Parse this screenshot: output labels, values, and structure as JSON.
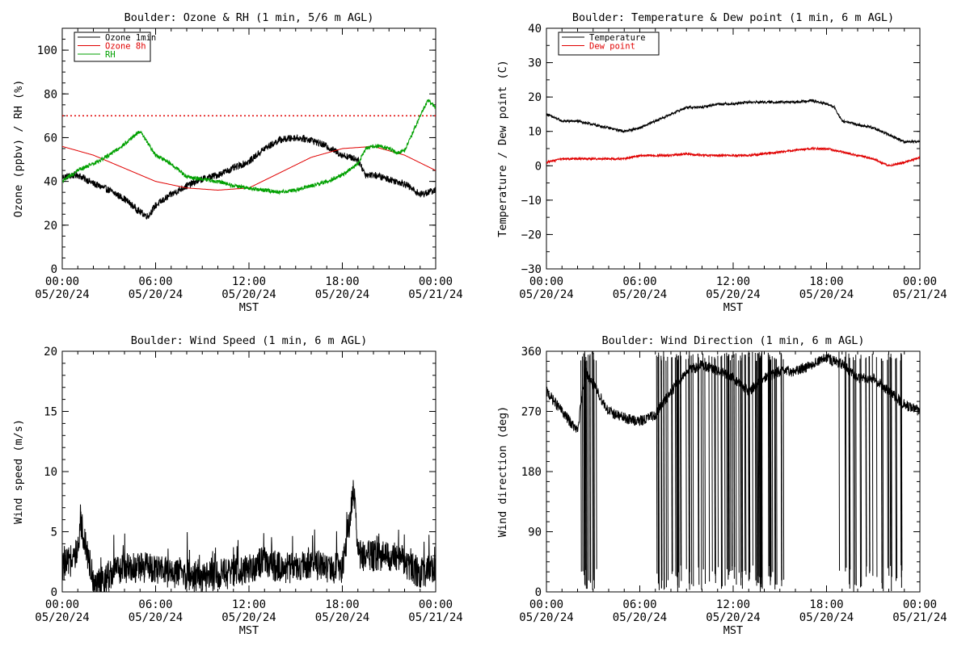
{
  "colors": {
    "background": "#ffffff",
    "axis": "#000000",
    "ozone_1min": "#000000",
    "ozone_8h": "#e00000",
    "rh": "#00a000",
    "temperature": "#000000",
    "dew_point": "#e00000",
    "reference_line": "#e00000"
  },
  "chart_data": [
    {
      "type": "line",
      "title": "Boulder: Ozone & RH (1 min, 5/6 m AGL)",
      "xlabel": "MST",
      "ylabel": "Ozone (ppbv) / RH (%)",
      "xlim": [
        "05/20/24 00:00",
        "05/21/24 00:00"
      ],
      "ylim": [
        0,
        110
      ],
      "xticks": [
        {
          "time": "00:00",
          "date": "05/20/24"
        },
        {
          "time": "06:00",
          "date": "05/20/24"
        },
        {
          "time": "12:00",
          "date": "05/20/24"
        },
        {
          "time": "18:00",
          "date": "05/20/24"
        },
        {
          "time": "00:00",
          "date": "05/21/24"
        }
      ],
      "yticks": [
        "0",
        "20",
        "40",
        "60",
        "80",
        "100"
      ],
      "legend": "top-left",
      "reference_line": {
        "y": 70,
        "style": "dotted",
        "color": "#e00000"
      },
      "series": [
        {
          "name": "Ozone 1min",
          "color": "#000000",
          "x": [
            "00:00",
            "01:00",
            "02:00",
            "03:00",
            "04:00",
            "05:00",
            "05:30",
            "06:00",
            "07:00",
            "08:00",
            "09:00",
            "10:00",
            "11:00",
            "12:00",
            "13:00",
            "14:00",
            "15:00",
            "16:00",
            "17:00",
            "18:00",
            "19:00",
            "19:30",
            "20:00",
            "21:00",
            "22:00",
            "23:00",
            "24:00"
          ],
          "y": [
            42,
            43,
            39,
            36,
            32,
            26,
            24,
            29,
            34,
            38,
            41,
            43,
            46,
            49,
            55,
            59,
            60,
            59,
            56,
            52,
            50,
            43,
            43,
            41,
            39,
            34,
            36
          ]
        },
        {
          "name": "Ozone 8h",
          "color": "#e00000",
          "x": [
            "00:00",
            "02:00",
            "04:00",
            "06:00",
            "08:00",
            "10:00",
            "12:00",
            "14:00",
            "16:00",
            "18:00",
            "20:00",
            "22:00",
            "24:00"
          ],
          "y": [
            56,
            52,
            46,
            40,
            37,
            36,
            37,
            44,
            51,
            55,
            56,
            52,
            45
          ]
        },
        {
          "name": "RH",
          "color": "#00a000",
          "x": [
            "00:00",
            "01:00",
            "02:00",
            "03:00",
            "04:00",
            "05:00",
            "06:00",
            "07:00",
            "08:00",
            "09:00",
            "10:00",
            "11:00",
            "12:00",
            "13:00",
            "14:00",
            "15:00",
            "16:00",
            "17:00",
            "18:00",
            "19:00",
            "19:30",
            "20:00",
            "20:30",
            "21:00",
            "21:30",
            "22:00",
            "23:00",
            "23:30",
            "24:00"
          ],
          "y": [
            40,
            45,
            48,
            52,
            57,
            63,
            52,
            48,
            42,
            41,
            40,
            38,
            37,
            36,
            35,
            36,
            38,
            40,
            43,
            48,
            55,
            56,
            56,
            55,
            53,
            54,
            70,
            77,
            74
          ]
        }
      ]
    },
    {
      "type": "line",
      "title": "Boulder: Temperature & Dew point (1 min, 6 m AGL)",
      "xlabel": "MST",
      "ylabel": "Temperature / Dew point (C)",
      "xlim": [
        "05/20/24 00:00",
        "05/21/24 00:00"
      ],
      "ylim": [
        -30,
        40
      ],
      "xticks": [
        {
          "time": "00:00",
          "date": "05/20/24"
        },
        {
          "time": "06:00",
          "date": "05/20/24"
        },
        {
          "time": "12:00",
          "date": "05/20/24"
        },
        {
          "time": "18:00",
          "date": "05/20/24"
        },
        {
          "time": "00:00",
          "date": "05/21/24"
        }
      ],
      "yticks": [
        "−30",
        "−20",
        "−10",
        "0",
        "10",
        "20",
        "30",
        "40"
      ],
      "legend": "top-left",
      "series": [
        {
          "name": "Temperature",
          "color": "#000000",
          "x": [
            "00:00",
            "01:00",
            "02:00",
            "03:00",
            "04:00",
            "05:00",
            "06:00",
            "07:00",
            "08:00",
            "09:00",
            "10:00",
            "11:00",
            "12:00",
            "13:00",
            "14:00",
            "15:00",
            "16:00",
            "17:00",
            "18:00",
            "18:30",
            "19:00",
            "20:00",
            "21:00",
            "22:00",
            "23:00",
            "24:00"
          ],
          "y": [
            15,
            13,
            13,
            12,
            11,
            10,
            11,
            13,
            15,
            17,
            17,
            18,
            18,
            18.5,
            18.5,
            18.5,
            18.5,
            19,
            18,
            17,
            13,
            12,
            11,
            9,
            7,
            7
          ]
        },
        {
          "name": "Dew point",
          "color": "#e00000",
          "x": [
            "00:00",
            "01:00",
            "02:00",
            "03:00",
            "04:00",
            "05:00",
            "06:00",
            "07:00",
            "08:00",
            "09:00",
            "10:00",
            "11:00",
            "12:00",
            "13:00",
            "14:00",
            "15:00",
            "16:00",
            "17:00",
            "18:00",
            "19:00",
            "20:00",
            "21:00",
            "22:00",
            "23:00",
            "24:00"
          ],
          "y": [
            1,
            2,
            2,
            2,
            2,
            2,
            3,
            3,
            3,
            3.5,
            3,
            3,
            3,
            3,
            3.5,
            4,
            4.5,
            5,
            5,
            4,
            3,
            2,
            0,
            1,
            2.5
          ]
        }
      ]
    },
    {
      "type": "line",
      "title": "Boulder: Wind Speed (1 min, 6 m AGL)",
      "xlabel": "MST",
      "ylabel": "Wind speed (m/s)",
      "xlim": [
        "05/20/24 00:00",
        "05/21/24 00:00"
      ],
      "ylim": [
        0,
        20
      ],
      "xticks": [
        {
          "time": "00:00",
          "date": "05/20/24"
        },
        {
          "time": "06:00",
          "date": "05/20/24"
        },
        {
          "time": "12:00",
          "date": "05/20/24"
        },
        {
          "time": "18:00",
          "date": "05/20/24"
        },
        {
          "time": "00:00",
          "date": "05/21/24"
        }
      ],
      "yticks": [
        "0",
        "5",
        "10",
        "15",
        "20"
      ],
      "series": [
        {
          "name": "",
          "color": "#000000",
          "x": [
            "00:00",
            "01:00",
            "01:10",
            "02:00",
            "02:30",
            "03:00",
            "04:00",
            "05:00",
            "06:00",
            "07:00",
            "08:00",
            "09:00",
            "10:00",
            "11:00",
            "12:00",
            "13:00",
            "14:00",
            "15:00",
            "16:00",
            "17:00",
            "18:00",
            "18:45",
            "19:00",
            "20:00",
            "21:00",
            "22:00",
            "23:00",
            "24:00"
          ],
          "y": [
            2,
            3,
            6,
            1,
            0.5,
            1.5,
            2,
            2,
            2,
            1.5,
            1.5,
            1,
            1.5,
            1.5,
            2,
            2.5,
            2,
            2,
            2.5,
            2,
            2,
            8.5,
            3,
            3,
            3,
            2.5,
            1.5,
            2
          ]
        }
      ]
    },
    {
      "type": "line",
      "title": "Boulder: Wind Direction (1 min, 6 m AGL)",
      "xlabel": "MST",
      "ylabel": "Wind direction (deg)",
      "xlim": [
        "05/20/24 00:00",
        "05/21/24 00:00"
      ],
      "ylim": [
        0,
        360
      ],
      "xticks": [
        {
          "time": "00:00",
          "date": "05/20/24"
        },
        {
          "time": "06:00",
          "date": "05/20/24"
        },
        {
          "time": "12:00",
          "date": "05/20/24"
        },
        {
          "time": "18:00",
          "date": "05/20/24"
        },
        {
          "time": "00:00",
          "date": "05/21/24"
        }
      ],
      "yticks": [
        "0",
        "90",
        "180",
        "270",
        "360"
      ],
      "series": [
        {
          "name": "",
          "color": "#000000",
          "x": [
            "00:00",
            "01:00",
            "02:00",
            "02:30",
            "03:00",
            "04:00",
            "05:00",
            "06:00",
            "07:00",
            "08:00",
            "09:00",
            "10:00",
            "11:00",
            "12:00",
            "13:00",
            "14:00",
            "15:00",
            "16:00",
            "17:00",
            "18:00",
            "19:00",
            "20:00",
            "21:00",
            "22:00",
            "23:00",
            "24:00"
          ],
          "y": [
            300,
            270,
            240,
            330,
            310,
            270,
            260,
            255,
            265,
            300,
            330,
            340,
            330,
            320,
            300,
            320,
            330,
            330,
            340,
            350,
            340,
            320,
            320,
            300,
            280,
            270
          ]
        }
      ]
    }
  ]
}
